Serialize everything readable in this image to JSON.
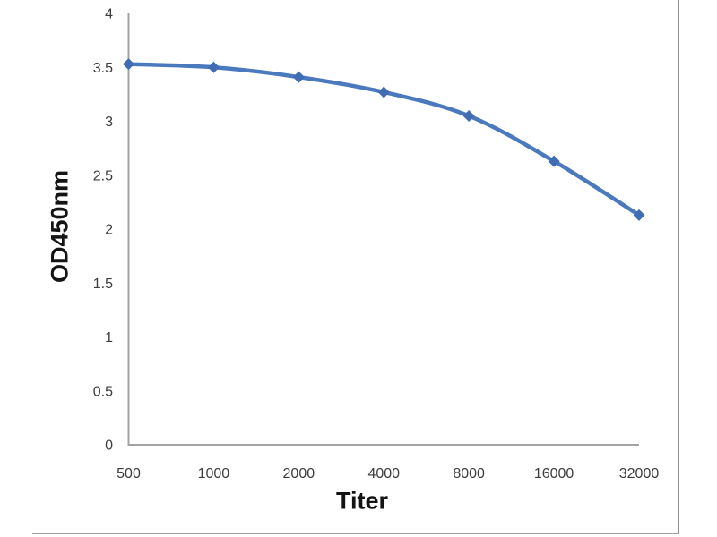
{
  "chart_data": {
    "type": "line",
    "title": "",
    "xlabel": "Titer",
    "ylabel": "OD450nm",
    "categories": [
      "500",
      "1000",
      "2000",
      "4000",
      "8000",
      "16000",
      "32000"
    ],
    "series": [
      {
        "name": "OD450nm",
        "values": [
          3.53,
          3.5,
          3.41,
          3.27,
          3.05,
          2.63,
          2.13
        ]
      }
    ],
    "ylim": [
      0,
      4
    ],
    "ytick_step": 0.5,
    "ytick_labels": [
      "0",
      "0.5",
      "1",
      "1.5",
      "2",
      "2.5",
      "3",
      "3.5",
      "4"
    ],
    "grid": false,
    "legend": false,
    "smooth": true,
    "marker": "diamond",
    "colors": {
      "line": "#4b79bd",
      "marker": "#3f6cb3",
      "axis": "#a3a3a3",
      "tick_label": "#3c3c3c",
      "axis_title": "#141414",
      "frame_border": "#909090"
    }
  }
}
